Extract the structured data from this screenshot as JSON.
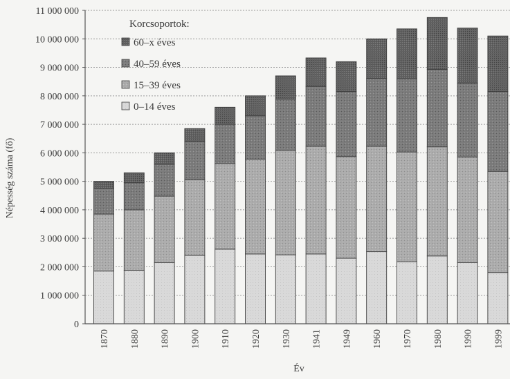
{
  "chart_data": {
    "type": "bar",
    "stacked": true,
    "categories": [
      "1870",
      "1880",
      "1890",
      "1900",
      "1910",
      "1920",
      "1930",
      "1941",
      "1949",
      "1960",
      "1970",
      "1980",
      "1990",
      "1999"
    ],
    "series": [
      {
        "name": "0–14 éves",
        "color": "#d6d6d6",
        "values": [
          1850000,
          1880000,
          2150000,
          2400000,
          2620000,
          2450000,
          2420000,
          2450000,
          2300000,
          2530000,
          2180000,
          2380000,
          2150000,
          1800000
        ]
      },
      {
        "name": "15–39 éves",
        "color": "#a9a9a9",
        "values": [
          2000000,
          2120000,
          2330000,
          2650000,
          3000000,
          3330000,
          3670000,
          3780000,
          3570000,
          3700000,
          3850000,
          3830000,
          3700000,
          3550000
        ]
      },
      {
        "name": "40–59 éves",
        "color": "#7a7a7a",
        "values": [
          900000,
          950000,
          1120000,
          1350000,
          1380000,
          1520000,
          1800000,
          2100000,
          2280000,
          2380000,
          2570000,
          2720000,
          2600000,
          2800000
        ]
      },
      {
        "name": "60–x éves",
        "color": "#5e5e5e",
        "values": [
          250000,
          350000,
          400000,
          450000,
          600000,
          700000,
          810000,
          1000000,
          1050000,
          1390000,
          1750000,
          1820000,
          1930000,
          1950000
        ]
      }
    ],
    "xlabel": "Év",
    "ylabel": "Népesség száma (fő)",
    "ylim": [
      0,
      11000000
    ],
    "y_ticks": [
      "0",
      "1 000 000",
      "2 000 000",
      "3 000 000",
      "4 000 000",
      "5 000 000",
      "6 000 000",
      "7 000 000",
      "8 000 000",
      "9 000 000",
      "10 000 000",
      "11 000 000"
    ],
    "y_tick_values": [
      0,
      1000000,
      2000000,
      3000000,
      4000000,
      5000000,
      6000000,
      7000000,
      8000000,
      9000000,
      10000000,
      11000000
    ],
    "legend": {
      "title": "Korcsoportok:",
      "placement": "top-left",
      "entries": [
        "60–x éves",
        "40–59 éves",
        "15–39 éves",
        "0–14 éves"
      ]
    },
    "grid": true
  }
}
